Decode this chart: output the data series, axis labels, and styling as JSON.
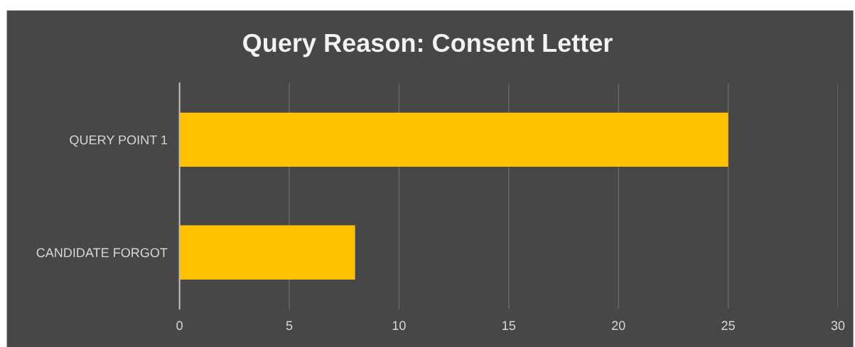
{
  "chart_data": {
    "type": "bar",
    "title": "Query Reason: Consent Letter",
    "orientation": "horizontal",
    "categories": [
      "QUERY POINT 1",
      "CANDIDATE FORGOT"
    ],
    "series": [
      {
        "color": "#ffc000",
        "values": [
          25,
          8
        ]
      }
    ],
    "xlim": [
      0,
      30
    ],
    "xticks": [
      0,
      5,
      10,
      15,
      20,
      25,
      30
    ],
    "grid": "x"
  }
}
